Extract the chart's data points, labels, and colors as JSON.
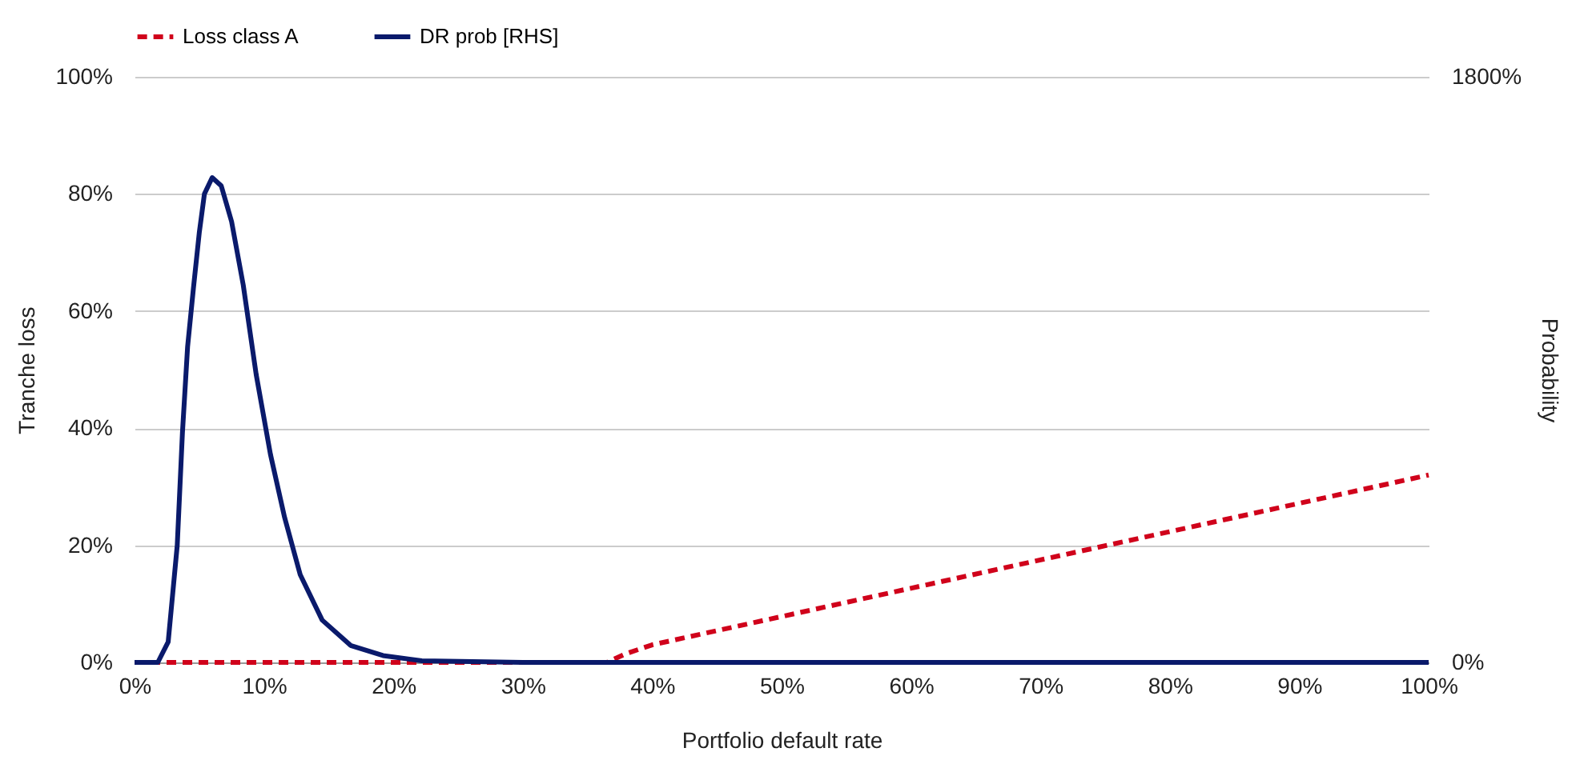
{
  "chart_data": {
    "type": "line",
    "xlabel": "Portfolio default rate",
    "ylabel": "Tranche loss",
    "y2label": "Probability",
    "xlim": [
      0,
      100
    ],
    "xticks": [
      {
        "value": 0,
        "label": "0%"
      },
      {
        "value": 10,
        "label": "10%"
      },
      {
        "value": 20,
        "label": "20%"
      },
      {
        "value": 30,
        "label": "30%"
      },
      {
        "value": 40,
        "label": "40%"
      },
      {
        "value": 50,
        "label": "50%"
      },
      {
        "value": 60,
        "label": "60%"
      },
      {
        "value": 70,
        "label": "70%"
      },
      {
        "value": 80,
        "label": "80%"
      },
      {
        "value": 90,
        "label": "90%"
      },
      {
        "value": 100,
        "label": "100%"
      }
    ],
    "ylim": [
      0,
      100
    ],
    "yticks": [
      {
        "value": 0,
        "label": "0%"
      },
      {
        "value": 20,
        "label": "20%"
      },
      {
        "value": 40,
        "label": "40%"
      },
      {
        "value": 60,
        "label": "60%"
      },
      {
        "value": 80,
        "label": "80%"
      },
      {
        "value": 100,
        "label": "100%"
      }
    ],
    "y2lim": [
      0,
      1800
    ],
    "y2ticks": [
      {
        "value": 0,
        "label": "0%"
      },
      {
        "value": 1800,
        "label": "1800%"
      }
    ],
    "grid": "y",
    "legend": "top",
    "marker": "none",
    "series": [
      {
        "name": "Loss class A",
        "color": "#d0021b",
        "line_style": "dashed",
        "x": [
          0,
          36.5,
          38,
          40,
          100
        ],
        "values": [
          0,
          0,
          1.5,
          3,
          32
        ]
      },
      {
        "name": "DR prob [RHS]",
        "color": "#0a1a6b",
        "line_style": "solid",
        "axis": "y2",
        "x": [
          0,
          1.8,
          2.6,
          3.3,
          3.7,
          4.1,
          4.55,
          5.0,
          5.4,
          6.0,
          6.7,
          7.5,
          8.4,
          9.4,
          10.5,
          11.6,
          12.8,
          14.5,
          16.7,
          19.2,
          22.2,
          30,
          100
        ],
        "values": [
          0,
          0,
          63,
          360,
          705,
          970,
          1150,
          1320,
          1440,
          1490,
          1465,
          1355,
          1160,
          885,
          640,
          445,
          270,
          130,
          52,
          21,
          5,
          0,
          0
        ]
      }
    ]
  }
}
